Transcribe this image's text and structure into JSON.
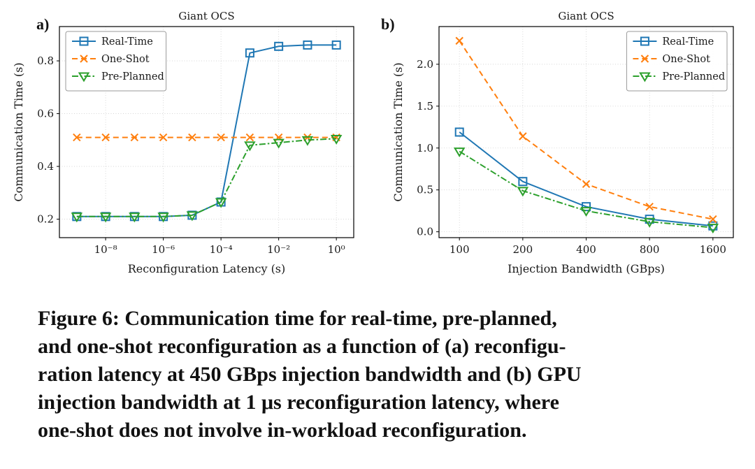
{
  "caption": {
    "lines": [
      "Figure 6: Communication time for real-time, pre-planned,",
      "and one-shot reconfiguration as a function of (a) reconfigu-",
      "ration latency at 450 GBps injection bandwidth and (b) GPU",
      "injection bandwidth at 1 μs reconfiguration latency, where",
      "one-shot does not involve in-workload reconfiguration."
    ]
  },
  "chart_data": [
    {
      "type": "line",
      "panel": "a)",
      "title": "Giant OCS",
      "xlabel": "Reconfiguration Latency (s)",
      "ylabel": "Communication Time (s)",
      "xscale": "log10",
      "xlim": [
        2.5e-10,
        4
      ],
      "ylim": [
        0.13,
        0.93
      ],
      "grid": true,
      "legend": "upper-left",
      "xticks": [
        {
          "value": 1e-08,
          "label": "10⁻⁸"
        },
        {
          "value": 1e-06,
          "label": "10⁻⁶"
        },
        {
          "value": 0.0001,
          "label": "10⁻⁴"
        },
        {
          "value": 0.01,
          "label": "10⁻²"
        },
        {
          "value": 1,
          "label": "10⁰"
        }
      ],
      "yticks": [
        {
          "value": 0.2,
          "label": "0.2"
        },
        {
          "value": 0.4,
          "label": "0.4"
        },
        {
          "value": 0.6,
          "label": "0.6"
        },
        {
          "value": 0.8,
          "label": "0.8"
        }
      ],
      "x": [
        1e-09,
        1e-08,
        1e-07,
        1e-06,
        1e-05,
        0.0001,
        0.001,
        0.01,
        0.1,
        1
      ],
      "series": [
        {
          "name": "Real-Time",
          "color": "#1f77b4",
          "linestyle": "solid",
          "marker": "square",
          "values": [
            0.21,
            0.21,
            0.21,
            0.21,
            0.215,
            0.265,
            0.83,
            0.855,
            0.86,
            0.86
          ]
        },
        {
          "name": "One-Shot",
          "color": "#ff7f0e",
          "linestyle": "dashed",
          "marker": "x",
          "values": [
            0.51,
            0.51,
            0.51,
            0.51,
            0.51,
            0.51,
            0.51,
            0.51,
            0.51,
            0.51
          ]
        },
        {
          "name": "Pre-Planned",
          "color": "#2ca02c",
          "linestyle": "dashdot",
          "marker": "triangle-down",
          "values": [
            0.21,
            0.21,
            0.21,
            0.21,
            0.215,
            0.265,
            0.48,
            0.49,
            0.5,
            0.505
          ]
        }
      ]
    },
    {
      "type": "line",
      "panel": "b)",
      "title": "Giant OCS",
      "xlabel": "Injection Bandwidth (GBps)",
      "ylabel": "Communication Time (s)",
      "xscale": "log2",
      "xlim": [
        80,
        2000
      ],
      "ylim": [
        -0.07,
        2.45
      ],
      "grid": true,
      "legend": "upper-right",
      "xticks": [
        {
          "value": 100,
          "label": "100"
        },
        {
          "value": 200,
          "label": "200"
        },
        {
          "value": 400,
          "label": "400"
        },
        {
          "value": 800,
          "label": "800"
        },
        {
          "value": 1600,
          "label": "1600"
        }
      ],
      "yticks": [
        {
          "value": 0.0,
          "label": "0.0"
        },
        {
          "value": 0.5,
          "label": "0.5"
        },
        {
          "value": 1.0,
          "label": "1.0"
        },
        {
          "value": 1.5,
          "label": "1.5"
        },
        {
          "value": 2.0,
          "label": "2.0"
        }
      ],
      "x": [
        100,
        200,
        400,
        800,
        1600
      ],
      "series": [
        {
          "name": "Real-Time",
          "color": "#1f77b4",
          "linestyle": "solid",
          "marker": "square",
          "values": [
            1.19,
            0.6,
            0.3,
            0.15,
            0.07
          ]
        },
        {
          "name": "One-Shot",
          "color": "#ff7f0e",
          "linestyle": "dashed",
          "marker": "x",
          "values": [
            2.28,
            1.14,
            0.57,
            0.3,
            0.15
          ]
        },
        {
          "name": "Pre-Planned",
          "color": "#2ca02c",
          "linestyle": "dashdot",
          "marker": "triangle-down",
          "values": [
            0.96,
            0.49,
            0.25,
            0.12,
            0.05
          ]
        }
      ]
    }
  ]
}
